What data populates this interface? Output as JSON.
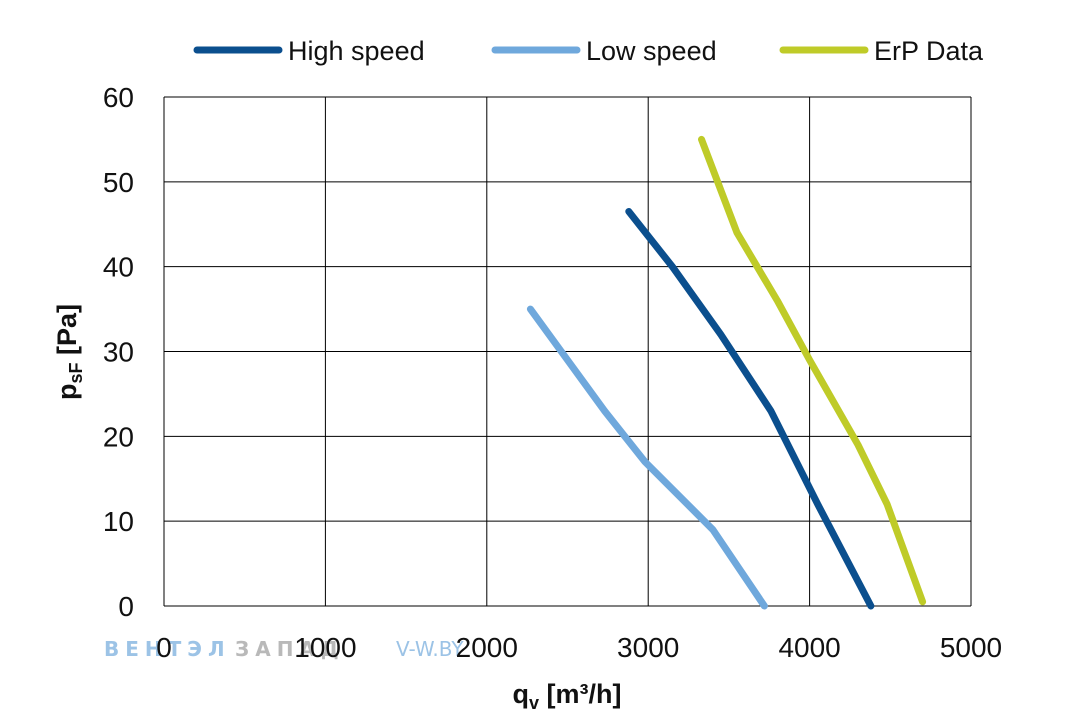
{
  "chart_data": {
    "type": "line",
    "title": "",
    "xlabel": "q",
    "xlabel_sub": "v",
    "xlabel_unit": " [m³/h]",
    "ylabel": "p",
    "ylabel_sub": "sF",
    "ylabel_unit": " [Pa]",
    "xlim": [
      0,
      5000
    ],
    "ylim": [
      0,
      60
    ],
    "x_ticks": [
      "0",
      "1000",
      "2000",
      "3000",
      "4000",
      "5000"
    ],
    "y_ticks": [
      "0",
      "10",
      "20",
      "30",
      "40",
      "50",
      "60"
    ],
    "grid": true,
    "legend_position": "top",
    "series": [
      {
        "name": "High speed",
        "color": "#0b4f8e",
        "points": [
          [
            2880,
            46.5
          ],
          [
            3150,
            40
          ],
          [
            3450,
            32
          ],
          [
            3760,
            23
          ],
          [
            4050,
            12
          ],
          [
            4380,
            0
          ]
        ]
      },
      {
        "name": "Low speed",
        "color": "#6fa8dc",
        "points": [
          [
            2270,
            35
          ],
          [
            2500,
            29
          ],
          [
            2730,
            23
          ],
          [
            2980,
            17
          ],
          [
            3400,
            9
          ],
          [
            3720,
            0
          ]
        ]
      },
      {
        "name": "ErP Data",
        "color": "#bfcb28",
        "points": [
          [
            3330,
            55
          ],
          [
            3550,
            44
          ],
          [
            3800,
            36
          ],
          [
            4000,
            29
          ],
          [
            4300,
            19
          ],
          [
            4480,
            12
          ],
          [
            4700,
            0.5
          ]
        ]
      }
    ]
  },
  "watermark": {
    "brand_part1": "ВЕНТЭЛ",
    "brand_part2": "ЗАПАД",
    "site": "V-W.BY"
  }
}
